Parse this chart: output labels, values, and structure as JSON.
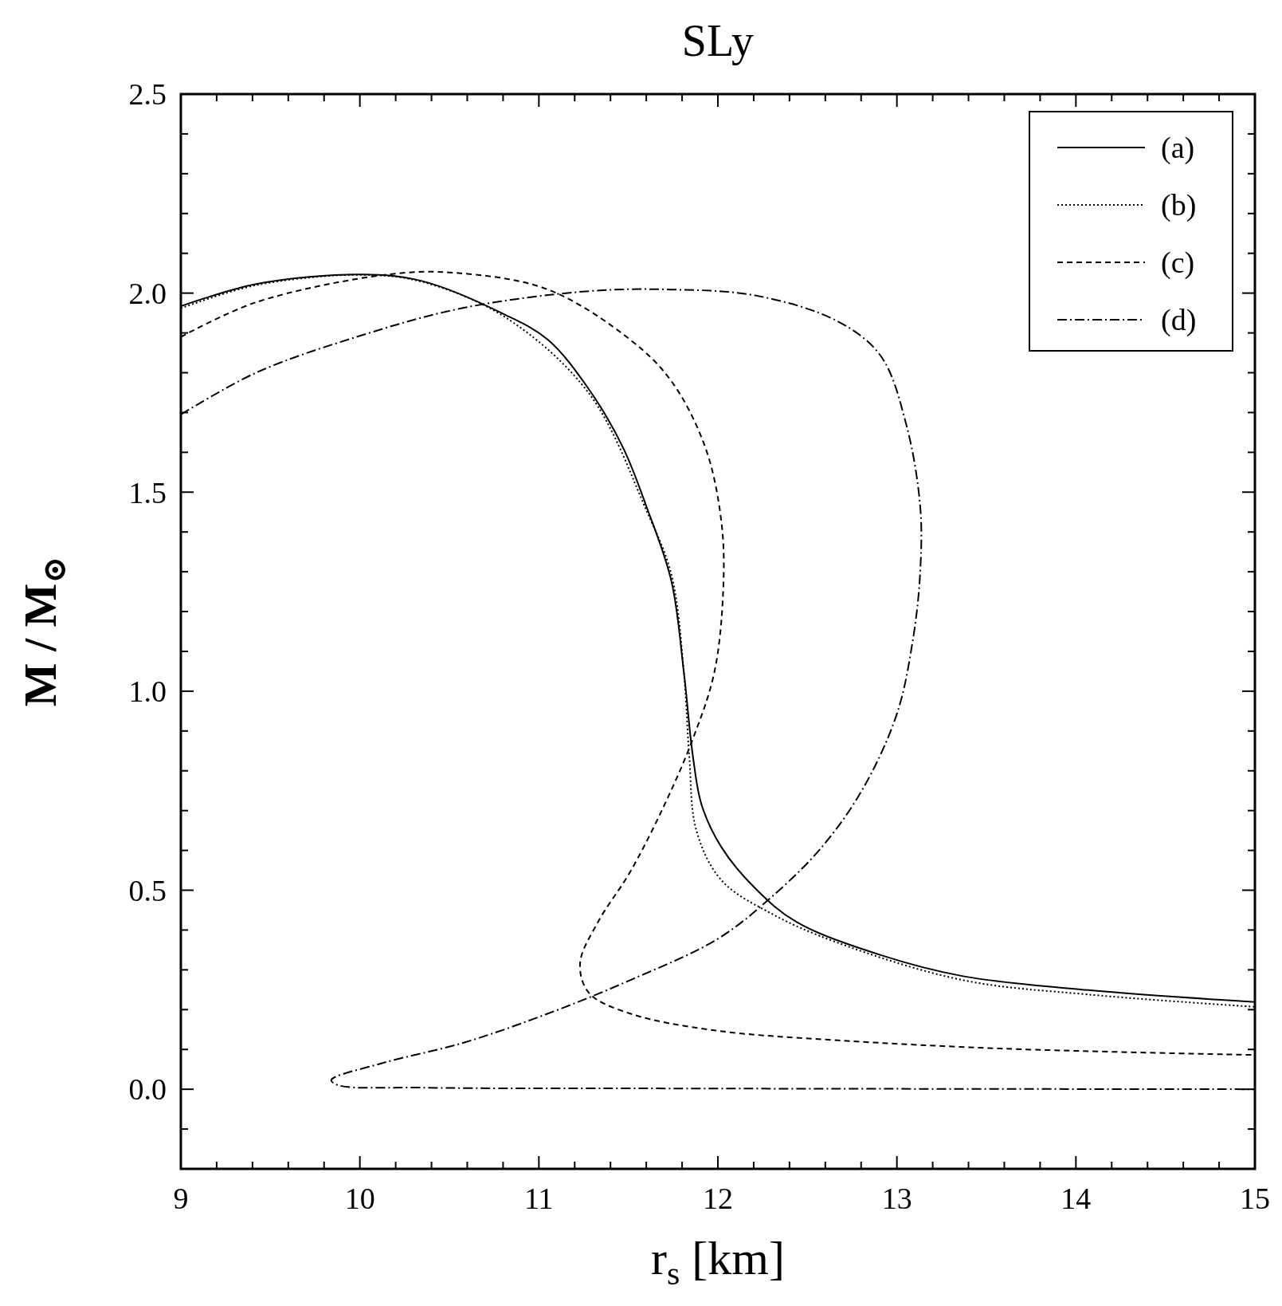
{
  "chart_data": {
    "type": "line",
    "title": "SLy",
    "xlabel": "r$_{s}$ [km]",
    "ylabel": "M / M$_{⊙}$",
    "xlim": [
      9,
      15
    ],
    "ylim": [
      -0.2,
      2.5
    ],
    "xticks": [
      9,
      {
        "value": 9.2,
        "label": null
      },
      {
        "value": 9.4,
        "label": null
      },
      {
        "value": 9.6,
        "label": null
      },
      {
        "value": 9.8,
        "label": null
      },
      10,
      {
        "value": 10.2,
        "label": null
      },
      {
        "value": 10.4,
        "label": null
      },
      {
        "value": 10.6,
        "label": null
      },
      {
        "value": 10.8,
        "label": null
      },
      11,
      {
        "value": 11.2,
        "label": null
      },
      {
        "value": 11.4,
        "label": null
      },
      {
        "value": 11.6,
        "label": null
      },
      {
        "value": 11.8,
        "label": null
      },
      12,
      {
        "value": 12.2,
        "label": null
      },
      {
        "value": 12.4,
        "label": null
      },
      {
        "value": 12.6,
        "label": null
      },
      {
        "value": 12.8,
        "label": null
      },
      13,
      {
        "value": 13.2,
        "label": null
      },
      {
        "value": 13.4,
        "label": null
      },
      {
        "value": 13.6,
        "label": null
      },
      {
        "value": 13.8,
        "label": null
      },
      14,
      {
        "value": 14.2,
        "label": null
      },
      {
        "value": 14.4,
        "label": null
      },
      {
        "value": 14.6,
        "label": null
      },
      {
        "value": 14.8,
        "label": null
      },
      15
    ],
    "yticks": [
      {
        "value": -0.1,
        "label": null
      },
      {
        "value": 0,
        "label": "0.0"
      },
      {
        "value": 0.1,
        "label": null
      },
      {
        "value": 0.2,
        "label": null
      },
      {
        "value": 0.3,
        "label": null
      },
      {
        "value": 0.4,
        "label": null
      },
      0.5,
      {
        "value": 0.6,
        "label": null
      },
      {
        "value": 0.7,
        "label": null
      },
      {
        "value": 0.8,
        "label": null
      },
      {
        "value": 0.9,
        "label": null
      },
      {
        "value": 1,
        "label": "1.0"
      },
      {
        "value": 1.1,
        "label": null
      },
      {
        "value": 1.2,
        "label": null
      },
      {
        "value": 1.3,
        "label": null
      },
      {
        "value": 1.4,
        "label": null
      },
      1.5,
      {
        "value": 1.6,
        "label": null
      },
      {
        "value": 1.7,
        "label": null
      },
      {
        "value": 1.8,
        "label": null
      },
      {
        "value": 1.9,
        "label": null
      },
      {
        "value": 2,
        "label": "2.0"
      },
      {
        "value": 2.1,
        "label": null
      },
      {
        "value": 2.2,
        "label": null
      },
      {
        "value": 2.3,
        "label": null
      },
      {
        "value": 2.4,
        "label": null
      },
      2.5
    ],
    "grid": false,
    "legend": "top right",
    "series": [
      {
        "name": "(a)",
        "color": "#000000",
        "line_style": "solid",
        "x": [
          9.0,
          9.42,
          10.01,
          10.35,
          10.81,
          11.05,
          11.28,
          11.47,
          11.6,
          11.74,
          11.81,
          11.86,
          11.91,
          12.02,
          12.21,
          12.44,
          12.91,
          13.37,
          14.07,
          15.0
        ],
        "values": [
          1.967,
          2.023,
          2.047,
          2.03,
          1.946,
          1.883,
          1.758,
          1.612,
          1.465,
          1.277,
          1.047,
          0.838,
          0.713,
          0.608,
          0.504,
          0.42,
          0.337,
          0.284,
          0.249,
          0.219
        ]
      },
      {
        "name": "(b)",
        "color": "#000000",
        "line_style": "dotted",
        "x": [
          9.0,
          9.42,
          10.01,
          10.35,
          10.81,
          11.28,
          11.6,
          11.74,
          11.81,
          11.84,
          11.88,
          12.02,
          12.3,
          12.67,
          13.37,
          14.07,
          15.0
        ],
        "values": [
          1.962,
          2.02,
          2.046,
          2.028,
          1.94,
          1.748,
          1.455,
          1.293,
          1.047,
          0.838,
          0.65,
          0.525,
          0.441,
          0.368,
          0.274,
          0.238,
          0.207
        ]
      },
      {
        "name": "(c)",
        "color": "#000000",
        "line_style": "dashed",
        "x": [
          9.0,
          9.42,
          10.16,
          10.53,
          11.05,
          11.51,
          11.74,
          11.93,
          12.02,
          12.03,
          11.98,
          11.86,
          11.7,
          11.51,
          11.33,
          11.23,
          11.28,
          11.51,
          11.98,
          12.67,
          13.6,
          15.0
        ],
        "values": [
          1.89,
          1.977,
          2.047,
          2.051,
          2.009,
          1.883,
          1.779,
          1.612,
          1.424,
          1.256,
          1.047,
          0.88,
          0.713,
          0.546,
          0.42,
          0.316,
          0.242,
          0.19,
          0.148,
          0.123,
          0.102,
          0.086
        ]
      },
      {
        "name": "(d)",
        "color": "#000000",
        "line_style": "dashdot",
        "x": [
          9.0,
          9.42,
          10.01,
          10.58,
          11.28,
          11.74,
          12.21,
          12.67,
          12.91,
          13.05,
          13.13,
          13.13,
          13.09,
          13.0,
          12.81,
          12.58,
          12.3,
          12.0,
          11.51,
          11.05,
          10.58,
          10.12,
          9.84,
          9.88,
          10.35,
          11.74,
          15.0
        ],
        "values": [
          1.695,
          1.8,
          1.894,
          1.963,
          2.005,
          2.009,
          1.994,
          1.929,
          1.842,
          1.674,
          1.465,
          1.298,
          1.131,
          0.943,
          0.755,
          0.608,
          0.483,
          0.378,
          0.274,
          0.19,
          0.117,
          0.065,
          0.023,
          0.01,
          0.004,
          0.002,
          0.0
        ]
      }
    ]
  }
}
